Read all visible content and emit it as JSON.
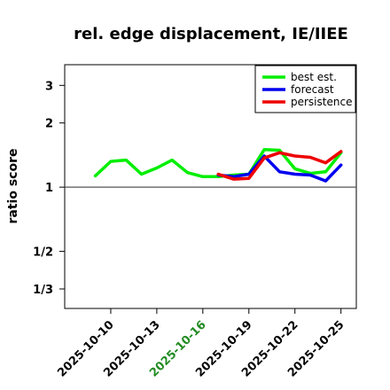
{
  "chart_data": {
    "type": "line",
    "title": "rel. edge displacement, IE/IIEE",
    "ylabel": "ratio score",
    "xlabel": "",
    "y_scale": "log",
    "ylim": [
      0.27,
      3.75
    ],
    "xlim": [
      "2025-10-07",
      "2025-10-26"
    ],
    "reference_line": 1,
    "x_ticks": [
      {
        "date": "2025-10-10",
        "label": "2025-10-10",
        "color": "#000000"
      },
      {
        "date": "2025-10-13",
        "label": "2025-10-13",
        "color": "#000000"
      },
      {
        "date": "2025-10-16",
        "label": "2025-10-16",
        "color": "#228B22"
      },
      {
        "date": "2025-10-19",
        "label": "2025-10-19",
        "color": "#000000"
      },
      {
        "date": "2025-10-22",
        "label": "2025-10-22",
        "color": "#000000"
      },
      {
        "date": "2025-10-25",
        "label": "2025-10-25",
        "color": "#000000"
      }
    ],
    "y_ticks": [
      {
        "value": 0.3333,
        "label": "1/3"
      },
      {
        "value": 0.5,
        "label": "1/2"
      },
      {
        "value": 1,
        "label": "1"
      },
      {
        "value": 2,
        "label": "2"
      },
      {
        "value": 3,
        "label": "3"
      }
    ],
    "legend_position": "top-right",
    "series": [
      {
        "name": "best est.",
        "color": "#00ee00",
        "points": [
          {
            "x": "2025-10-09",
            "y": 1.13
          },
          {
            "x": "2025-10-10",
            "y": 1.32
          },
          {
            "x": "2025-10-11",
            "y": 1.34
          },
          {
            "x": "2025-10-12",
            "y": 1.15
          },
          {
            "x": "2025-10-13",
            "y": 1.23
          },
          {
            "x": "2025-10-14",
            "y": 1.34
          },
          {
            "x": "2025-10-15",
            "y": 1.17
          },
          {
            "x": "2025-10-16",
            "y": 1.12
          },
          {
            "x": "2025-10-17",
            "y": 1.12
          },
          {
            "x": "2025-10-18",
            "y": 1.14
          },
          {
            "x": "2025-10-19",
            "y": 1.15
          },
          {
            "x": "2025-10-20",
            "y": 1.5
          },
          {
            "x": "2025-10-21",
            "y": 1.49
          },
          {
            "x": "2025-10-22",
            "y": 1.22
          },
          {
            "x": "2025-10-23",
            "y": 1.16
          },
          {
            "x": "2025-10-24",
            "y": 1.18
          },
          {
            "x": "2025-10-25",
            "y": 1.45
          }
        ]
      },
      {
        "name": "forecast",
        "color": "#0000ee",
        "points": [
          {
            "x": "2025-10-17",
            "y": 1.14
          },
          {
            "x": "2025-10-18",
            "y": 1.12
          },
          {
            "x": "2025-10-19",
            "y": 1.15
          },
          {
            "x": "2025-10-20",
            "y": 1.4
          },
          {
            "x": "2025-10-21",
            "y": 1.18
          },
          {
            "x": "2025-10-22",
            "y": 1.15
          },
          {
            "x": "2025-10-23",
            "y": 1.14
          },
          {
            "x": "2025-10-24",
            "y": 1.07
          },
          {
            "x": "2025-10-25",
            "y": 1.27
          }
        ]
      },
      {
        "name": "persistence",
        "color": "#ee0000",
        "points": [
          {
            "x": "2025-10-17",
            "y": 1.15
          },
          {
            "x": "2025-10-18",
            "y": 1.09
          },
          {
            "x": "2025-10-19",
            "y": 1.1
          },
          {
            "x": "2025-10-20",
            "y": 1.37
          },
          {
            "x": "2025-10-21",
            "y": 1.45
          },
          {
            "x": "2025-10-22",
            "y": 1.4
          },
          {
            "x": "2025-10-23",
            "y": 1.38
          },
          {
            "x": "2025-10-24",
            "y": 1.3
          },
          {
            "x": "2025-10-25",
            "y": 1.47
          }
        ]
      }
    ]
  }
}
